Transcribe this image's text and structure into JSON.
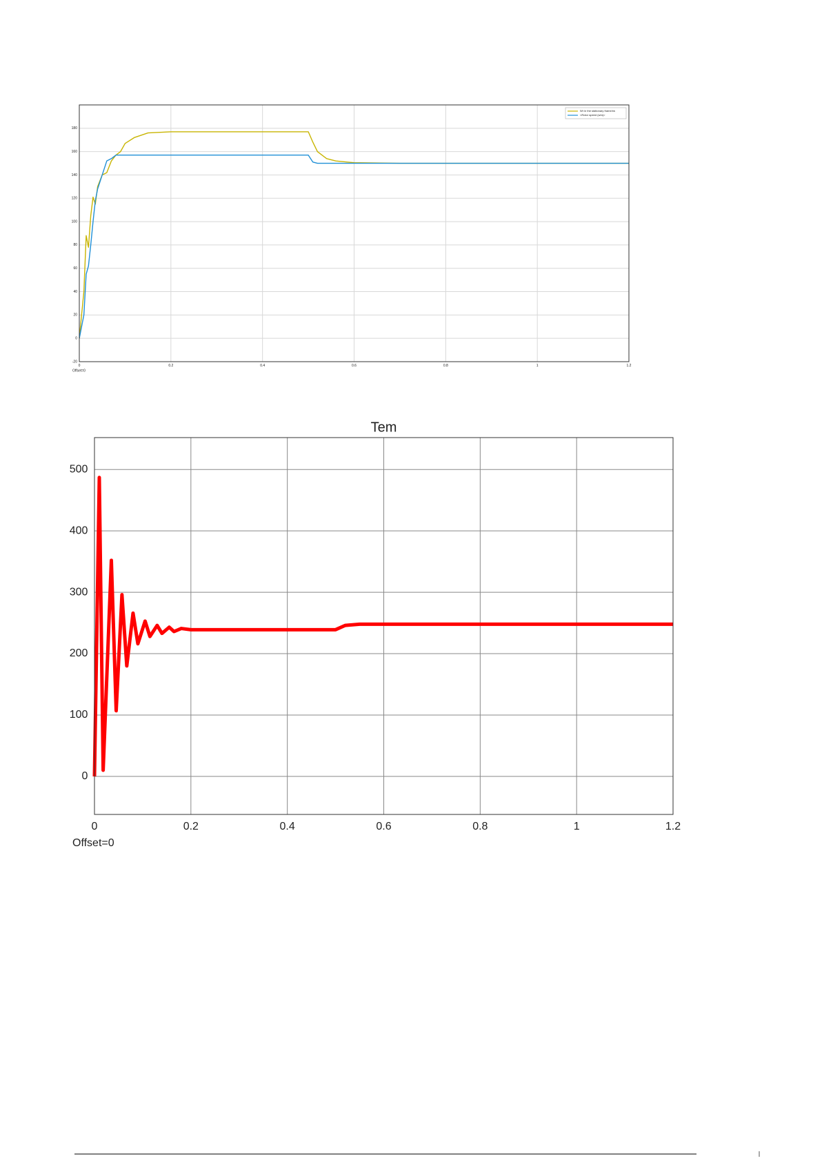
{
  "chart_data": [
    {
      "type": "line",
      "annotation": "Offset=0",
      "x": [
        0,
        0.01,
        0.015,
        0.02,
        0.025,
        0.03,
        0.035,
        0.04,
        0.05,
        0.06,
        0.07,
        0.08,
        0.09,
        0.1,
        0.12,
        0.15,
        0.2,
        0.3,
        0.5,
        0.51,
        0.52,
        0.54,
        0.56,
        0.6,
        0.7,
        1.2
      ],
      "series": [
        {
          "name": "Wr in the stationary frame/rw",
          "color": "#c8b400",
          "values": [
            0,
            40,
            88,
            78,
            105,
            121,
            115,
            130,
            140,
            142,
            152,
            157,
            160,
            167,
            172,
            176,
            177,
            177,
            177,
            168,
            160,
            154,
            152,
            150.5,
            150,
            150
          ]
        },
        {
          "name": "<Rotor speed (wm)>",
          "color": "#1f8fd6",
          "values": [
            0,
            20,
            55,
            62,
            80,
            100,
            118,
            128,
            140,
            152,
            154,
            157,
            157,
            157,
            157,
            157,
            157,
            157,
            157,
            151,
            150,
            150,
            150,
            150,
            150,
            150
          ]
        }
      ],
      "xlim": [
        0,
        1.2
      ],
      "xticks": [
        0,
        0.2,
        0.4,
        0.6,
        0.8,
        1,
        1.2
      ],
      "ylim": [
        -20,
        200
      ],
      "yticks": [
        -20,
        0,
        20,
        40,
        60,
        80,
        100,
        120,
        140,
        160,
        180
      ],
      "grid": true,
      "legend": "upper-right"
    },
    {
      "type": "line",
      "title": "Tem",
      "annotation": "Offset=0",
      "x": [
        0,
        0.01,
        0.018,
        0.035,
        0.045,
        0.057,
        0.067,
        0.08,
        0.09,
        0.105,
        0.115,
        0.13,
        0.14,
        0.155,
        0.165,
        0.18,
        0.2,
        0.5,
        0.52,
        0.55,
        1.2
      ],
      "series": [
        {
          "color": "#ff0000",
          "values": [
            0,
            487,
            10,
            352,
            107,
            296,
            180,
            266,
            216,
            253,
            228,
            246,
            233,
            243,
            236,
            241,
            239,
            239,
            246,
            248,
            248
          ]
        }
      ],
      "xlim": [
        0,
        1.2
      ],
      "xticks": [
        0,
        0.2,
        0.4,
        0.6,
        0.8,
        1,
        1.2
      ],
      "ylim": [
        -62,
        552
      ],
      "yticks": [
        0,
        100,
        200,
        300,
        400,
        500
      ],
      "grid": true
    }
  ]
}
